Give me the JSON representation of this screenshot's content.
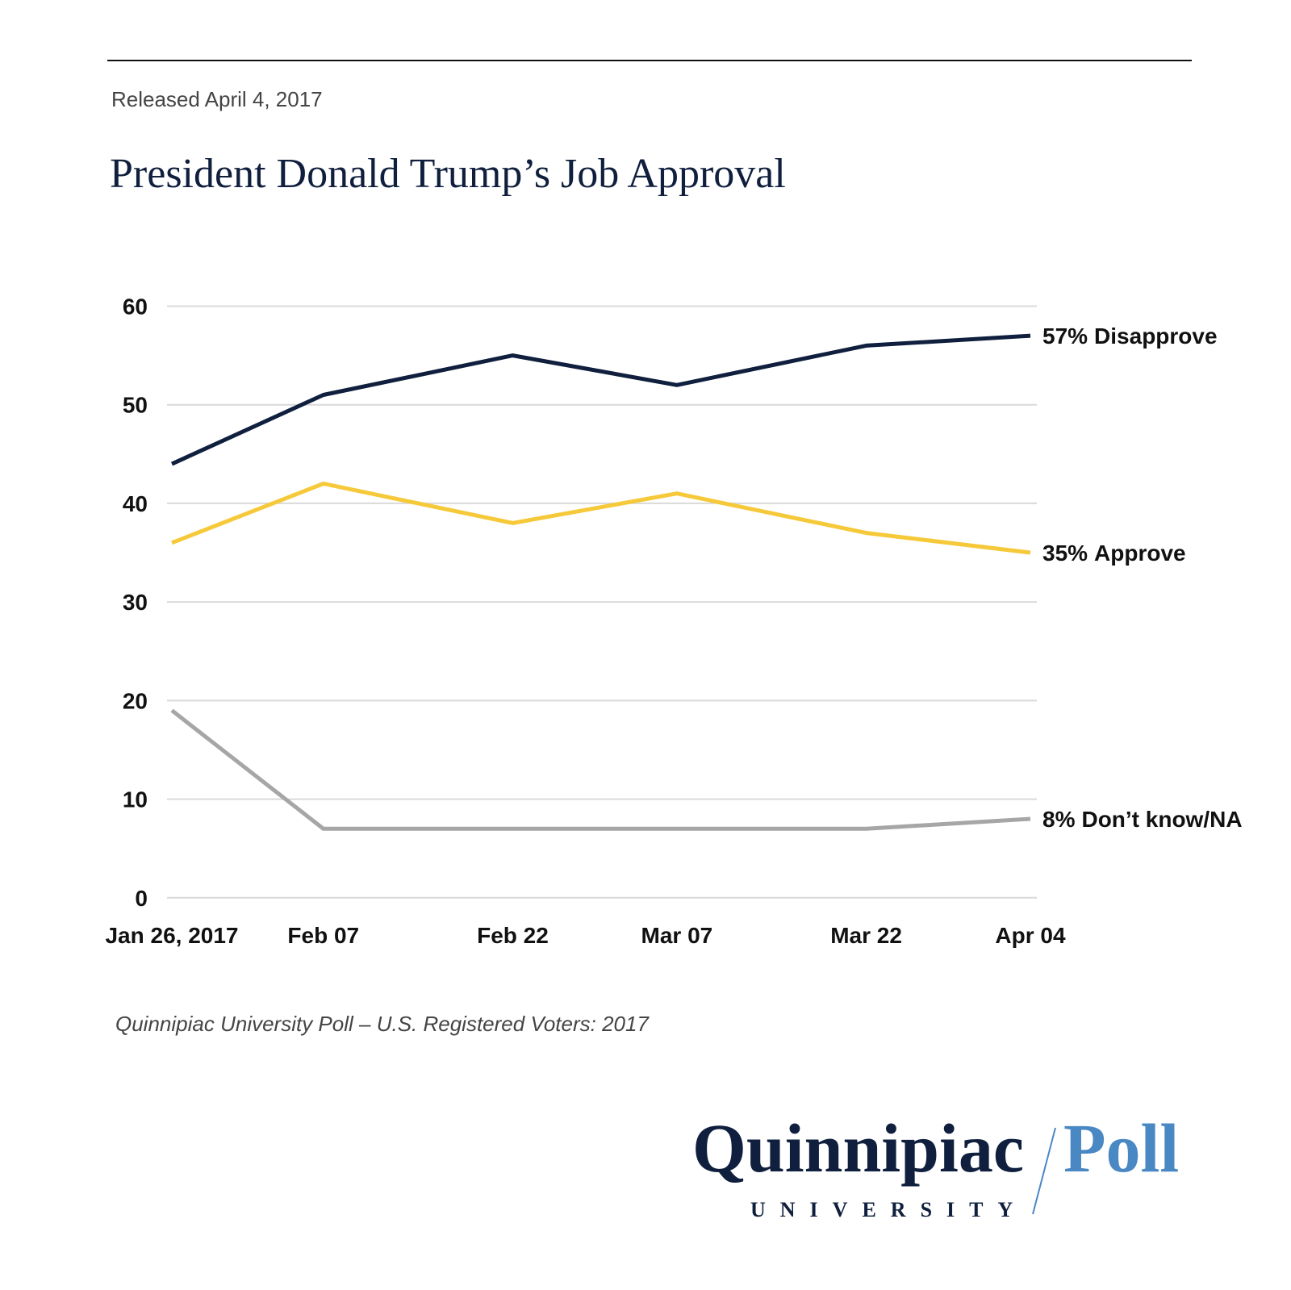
{
  "header": {
    "released": "Released April 4, 2017"
  },
  "chart_data": {
    "type": "line",
    "title": "President Donald Trump’s Job Approval",
    "x": [
      {
        "value": "2017-01-26",
        "label": "Jan 26, 2017"
      },
      {
        "value": "2017-02-07",
        "label": "Feb 07"
      },
      {
        "value": "2017-02-22",
        "label": "Feb 22"
      },
      {
        "value": "2017-03-07",
        "label": "Mar 07"
      },
      {
        "value": "2017-03-22",
        "label": "Mar 22"
      },
      {
        "value": "2017-04-04",
        "label": "Apr 04"
      }
    ],
    "xlim": [
      "2017-01-26",
      "2017-04-04"
    ],
    "series": [
      {
        "name": "Disapprove",
        "color": "#0f1f3d",
        "values": [
          44,
          51,
          55,
          52,
          56,
          57
        ],
        "value_labels": [
          null,
          null,
          null,
          null,
          null,
          "57%"
        ]
      },
      {
        "name": "Approve",
        "color": "#f6c93a",
        "values": [
          36,
          42,
          38,
          41,
          37,
          35
        ],
        "value_labels": [
          null,
          null,
          null,
          null,
          null,
          "35%"
        ]
      },
      {
        "name": "Don’t know/NA",
        "color": "#a6a6a6",
        "values": [
          19,
          7,
          7,
          7,
          7,
          8
        ],
        "value_labels": [
          null,
          null,
          null,
          null,
          null,
          "8%"
        ]
      }
    ],
    "ylim": [
      0,
      60
    ],
    "yticks": [
      0,
      10,
      20,
      30,
      40,
      50,
      60
    ],
    "grid": true,
    "source": "Quinnipiac University Poll – U.S. Registered Voters: 2017"
  },
  "logo": {
    "name": "Quinnipiac",
    "poll": "Poll",
    "university": "UNIVERSITY"
  }
}
